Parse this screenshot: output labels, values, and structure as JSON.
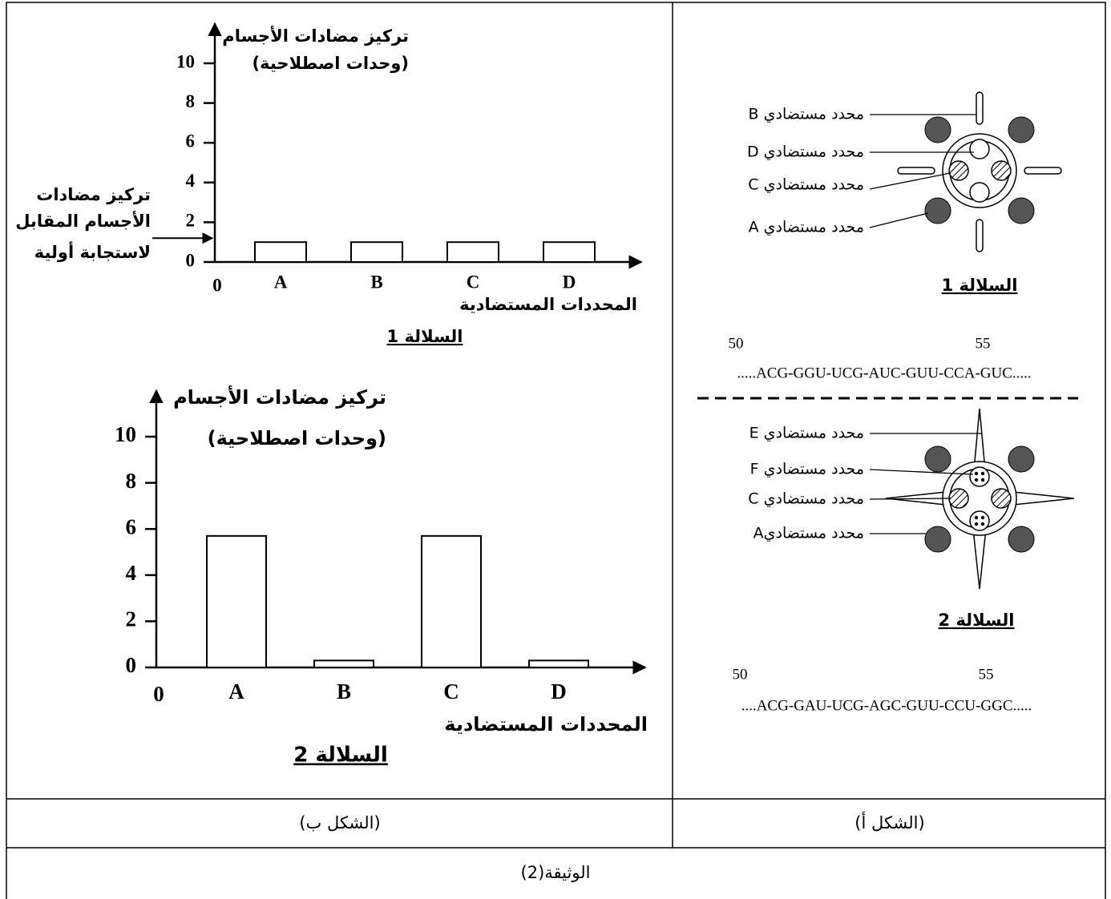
{
  "chart_data": [
    {
      "type": "bar",
      "title": "السلالة 1",
      "y_label": [
        "تركيز مضادات الأجسام",
        "(وحدات اصطلاحية)"
      ],
      "x_label": "المحددات المستضادية",
      "x_origin_label": "0",
      "categories": [
        "A",
        "B",
        "C",
        "D"
      ],
      "values": [
        1,
        1,
        1,
        1
      ],
      "color": "#ffffff",
      "ylim": [
        0,
        12
      ],
      "yticks": [
        0,
        2,
        4,
        6,
        8,
        10
      ],
      "annotation": {
        "text": [
          "تركيز مضادات",
          "الأجسام المقابل",
          "لاستجابة أولية"
        ],
        "value": 1.2
      }
    },
    {
      "type": "bar",
      "title": "السلالة 2",
      "y_label": [
        "تركيز مضادات الأجسام",
        "(وحدات اصطلاحية)"
      ],
      "x_label": "المحددات المستضادية",
      "x_origin_label": "0",
      "categories": [
        "A",
        "B",
        "C",
        "D"
      ],
      "values": [
        5.7,
        0.3,
        5.7,
        0.3
      ],
      "color": "#ffffff",
      "ylim": [
        0,
        12
      ],
      "yticks": [
        0,
        2,
        4,
        6,
        8,
        10
      ]
    }
  ],
  "figure_a": {
    "strain_1": {
      "labels": [
        "محدد مستضادي B",
        "محدد مستضادي D",
        "محدد مستضادي C",
        "محدد مستضادي A"
      ],
      "caption": "السلالة 1",
      "positions": [
        50,
        55
      ],
      "sequence": ".....ACG-GGU-UCG-AUC-GUU-CCA-GUC....."
    },
    "strain_2": {
      "labels": [
        "محدد مستضادي E",
        "محدد مستضادي F",
        "محدد مستضادي C",
        "محدد مستضاديA"
      ],
      "caption": "السلالة 2",
      "positions": [
        50,
        55
      ],
      "sequence": "....ACG-GAU-UCG-AGC-GUU-CCU-GGC....."
    }
  },
  "captions": [
    "(الشكل ب)",
    "(الشكل أ)"
  ],
  "document_title": "الوثيقة(2)"
}
